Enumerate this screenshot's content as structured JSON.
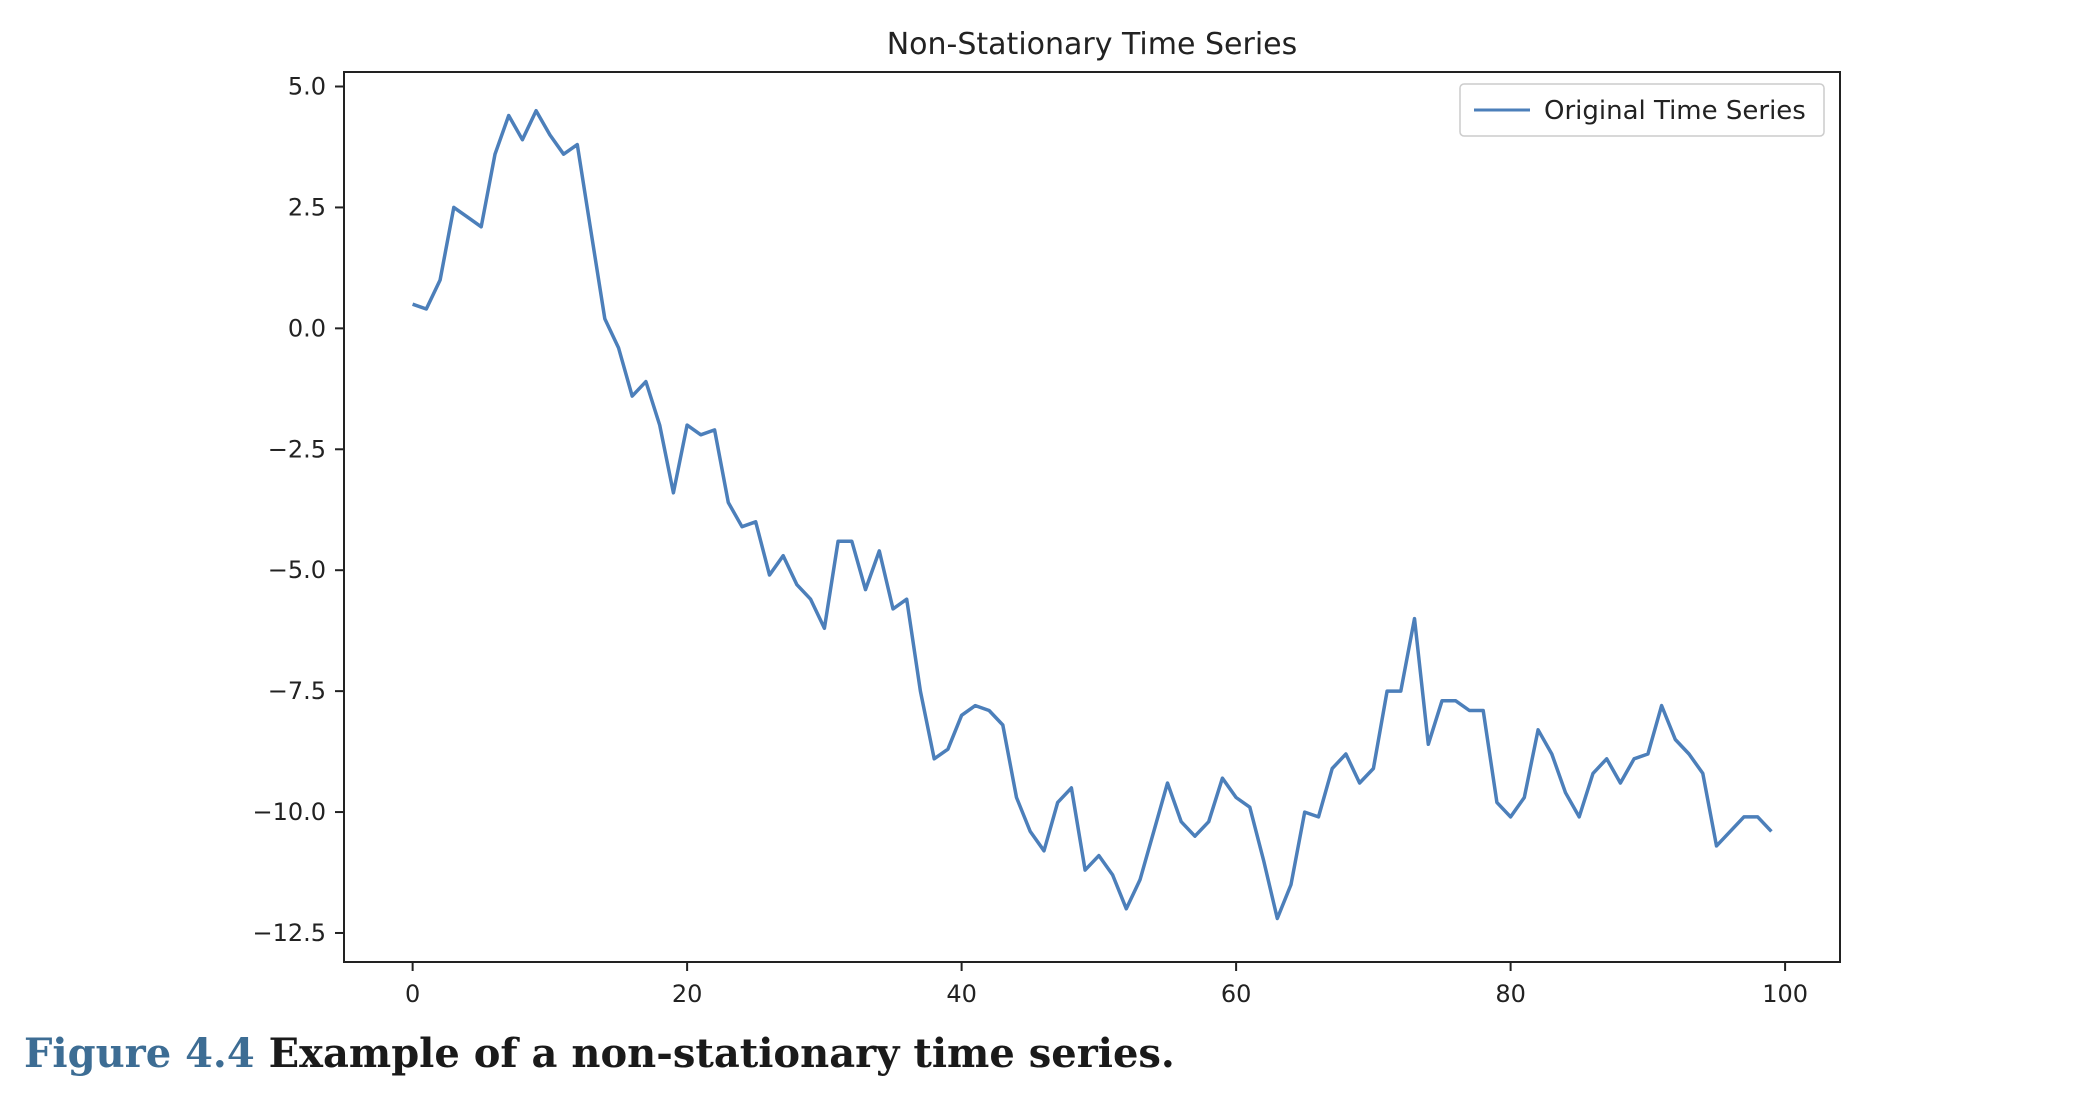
{
  "caption": {
    "label": "Figure 4.4",
    "text": "Example of a non-stationary time series."
  },
  "chart_data": {
    "type": "line",
    "title": "Non-Stationary Time Series",
    "xlabel": "",
    "ylabel": "",
    "xlim": [
      -5,
      104
    ],
    "ylim": [
      -13.1,
      5.3
    ],
    "xticks": [
      0,
      20,
      40,
      60,
      80,
      100
    ],
    "yticks": [
      5.0,
      2.5,
      0.0,
      -2.5,
      -5.0,
      -7.5,
      -10.0,
      -12.5
    ],
    "xtick_labels": [
      "0",
      "20",
      "40",
      "60",
      "80",
      "100"
    ],
    "ytick_labels": [
      "5.0",
      "2.5",
      "0.0",
      "−2.5",
      "−5.0",
      "−7.5",
      "−10.0",
      "−12.5"
    ],
    "grid": false,
    "legend_position": "top-right",
    "line_color": "#4c7fba",
    "series": [
      {
        "name": "Original Time Series",
        "x": [
          0,
          1,
          2,
          3,
          4,
          5,
          6,
          7,
          8,
          9,
          10,
          11,
          12,
          13,
          14,
          15,
          16,
          17,
          18,
          19,
          20,
          21,
          22,
          23,
          24,
          25,
          26,
          27,
          28,
          29,
          30,
          31,
          32,
          33,
          34,
          35,
          36,
          37,
          38,
          39,
          40,
          41,
          42,
          43,
          44,
          45,
          46,
          47,
          48,
          49,
          50,
          51,
          52,
          53,
          54,
          55,
          56,
          57,
          58,
          59,
          60,
          61,
          62,
          63,
          64,
          65,
          66,
          67,
          68,
          69,
          70,
          71,
          72,
          73,
          74,
          75,
          76,
          77,
          78,
          79,
          80,
          81,
          82,
          83,
          84,
          85,
          86,
          87,
          88,
          89,
          90,
          91,
          92,
          93,
          94,
          95,
          96,
          97,
          98,
          99
        ],
        "values": [
          0.5,
          0.4,
          1.0,
          2.5,
          2.3,
          2.1,
          3.6,
          4.4,
          3.9,
          4.5,
          4.0,
          3.6,
          3.8,
          2.0,
          0.2,
          -0.4,
          -1.4,
          -1.1,
          -2.0,
          -3.4,
          -2.0,
          -2.2,
          -2.1,
          -3.6,
          -4.1,
          -4.0,
          -5.1,
          -4.7,
          -5.3,
          -5.6,
          -6.2,
          -4.4,
          -4.4,
          -5.4,
          -4.6,
          -5.8,
          -5.6,
          -7.5,
          -8.9,
          -8.7,
          -8.0,
          -7.8,
          -7.9,
          -8.2,
          -9.7,
          -10.4,
          -10.8,
          -9.8,
          -9.5,
          -11.2,
          -10.9,
          -11.3,
          -12.0,
          -11.4,
          -10.4,
          -9.4,
          -10.2,
          -10.5,
          -10.2,
          -9.3,
          -9.7,
          -9.9,
          -11.0,
          -12.2,
          -11.5,
          -10.0,
          -10.1,
          -9.1,
          -8.8,
          -9.4,
          -9.1,
          -7.5,
          -7.5,
          -6.0,
          -8.6,
          -7.7,
          -7.7,
          -7.9,
          -7.9,
          -9.8,
          -10.1,
          -9.7,
          -8.3,
          -8.8,
          -9.6,
          -10.1,
          -9.2,
          -8.9,
          -9.4,
          -8.9,
          -8.8,
          -7.8,
          -8.5,
          -8.8,
          -9.2,
          -10.7,
          -10.4,
          -10.1,
          -10.1,
          -10.4
        ]
      }
    ]
  }
}
